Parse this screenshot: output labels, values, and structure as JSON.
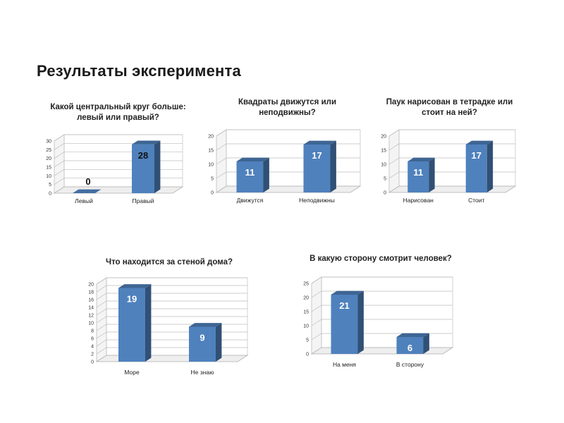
{
  "page": {
    "title": "Результаты эксперимента"
  },
  "chart_data": [
    {
      "type": "bar",
      "title": "Какой центральный круг больше:\nлевый или правый?",
      "categories": [
        "Левый",
        "Правый"
      ],
      "values": [
        0,
        28
      ],
      "ylim": [
        0,
        30
      ],
      "yticks": [
        0,
        5,
        10,
        15,
        20,
        25,
        30
      ],
      "grid": true,
      "bar_color": "#4f81bd",
      "data_label_color": "#111111"
    },
    {
      "type": "bar",
      "title": "Квадраты движутся или\nнеподвижны?",
      "categories": [
        "Движутся",
        "Неподвижны"
      ],
      "values": [
        11,
        17
      ],
      "ylim": [
        0,
        20
      ],
      "yticks": [
        0,
        5,
        10,
        15,
        20
      ],
      "grid": true,
      "bar_color": "#4f81bd",
      "data_label_color": "#ffffff"
    },
    {
      "type": "bar",
      "title": "Паук нарисован в тетрадке или\nстоит на ней?",
      "categories": [
        "Нарисован",
        "Стоит"
      ],
      "values": [
        11,
        17
      ],
      "ylim": [
        0,
        20
      ],
      "yticks": [
        0,
        5,
        10,
        15,
        20
      ],
      "grid": true,
      "bar_color": "#4f81bd",
      "data_label_color": "#ffffff"
    },
    {
      "type": "bar",
      "title": "Что находится за стеной дома?",
      "categories": [
        "Море",
        "Не знаю"
      ],
      "values": [
        19,
        9
      ],
      "ylim": [
        0,
        20
      ],
      "yticks": [
        0,
        2,
        4,
        6,
        8,
        10,
        12,
        14,
        16,
        18,
        20
      ],
      "grid": true,
      "bar_color": "#4f81bd",
      "data_label_color": "#ffffff"
    },
    {
      "type": "bar",
      "title": "В какую сторону смотрит человек?",
      "categories": [
        "На меня",
        "В сторону"
      ],
      "values": [
        21,
        6
      ],
      "ylim": [
        0,
        25
      ],
      "yticks": [
        0,
        5,
        10,
        15,
        20,
        25
      ],
      "grid": true,
      "bar_color": "#4f81bd",
      "data_label_color": "#ffffff"
    }
  ]
}
